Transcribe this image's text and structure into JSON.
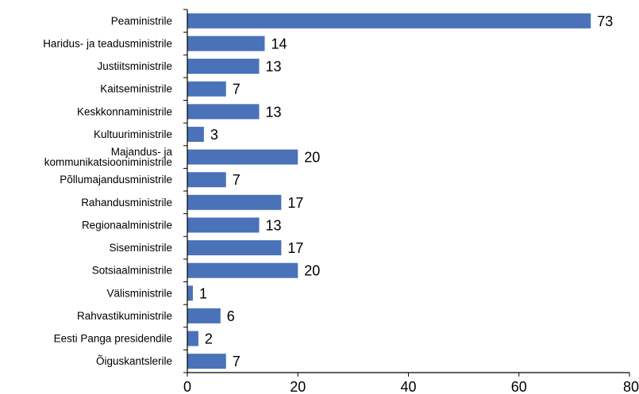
{
  "chart_data": {
    "type": "bar",
    "orientation": "horizontal",
    "categories": [
      "Peaministrile",
      "Haridus- ja teadusministrile",
      "Justiitsministrile",
      "Kaitseministrile",
      "Keskkonnaministrile",
      "Kultuuriministrile",
      "Majandus- ja\nkommunikatsiooniministrile",
      "Põllumajandusministrile",
      "Rahandusministrile",
      "Regionaalministrile",
      "Siseministrile",
      "Sotsiaalministrile",
      "Välisministrile",
      "Rahvastikuministrile",
      "Eesti Panga presidendile",
      "Õiguskantslerile"
    ],
    "values": [
      73,
      14,
      13,
      7,
      13,
      3,
      20,
      7,
      17,
      13,
      17,
      20,
      1,
      6,
      2,
      7
    ],
    "xlim": [
      0,
      80
    ],
    "xticks": [
      "0",
      "20",
      "40",
      "60",
      "80"
    ],
    "grid": false,
    "bar_color": "#4A72B8",
    "data_labels": true
  }
}
